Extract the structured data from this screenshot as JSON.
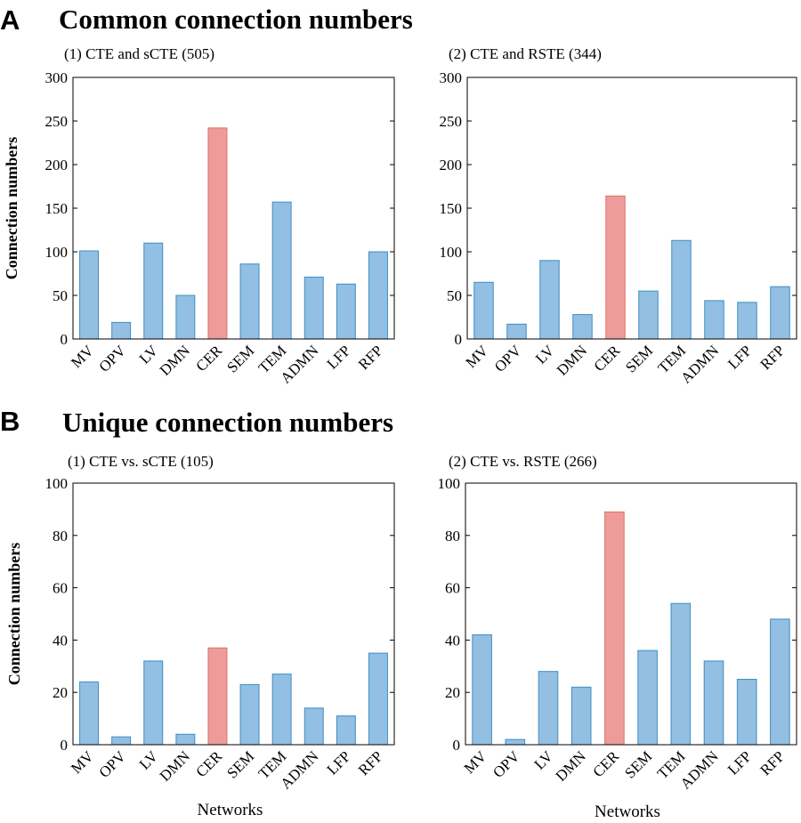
{
  "sections": [
    {
      "letter": "A",
      "heading": "Common connection numbers"
    },
    {
      "letter": "B",
      "heading": "Unique connection numbers"
    }
  ],
  "chart_data": [
    {
      "type": "bar",
      "title": "(1) CTE and sCTE (505)",
      "ylabel": "Connection numbers",
      "xlabel": "",
      "ylim": [
        0,
        300
      ],
      "yticks": [
        0,
        50,
        100,
        150,
        200,
        250,
        300
      ],
      "categories": [
        "MV",
        "OPV",
        "LV",
        "DMN",
        "CER",
        "SEM",
        "TEM",
        "ADMN",
        "LFP",
        "RFP"
      ],
      "values": [
        101,
        19,
        110,
        50,
        242,
        86,
        157,
        71,
        63,
        100
      ],
      "highlight": "CER",
      "colors": {
        "bar": "#93bfe3",
        "bar_edge": "#3c8fc2",
        "highlight": "#ee9b9b",
        "highlight_edge": "#e0705f"
      }
    },
    {
      "type": "bar",
      "title": "(2) CTE and RSTE (344)",
      "ylabel": "",
      "xlabel": "",
      "ylim": [
        0,
        300
      ],
      "yticks": [
        0,
        50,
        100,
        150,
        200,
        250,
        300
      ],
      "categories": [
        "MV",
        "OPV",
        "LV",
        "DMN",
        "CER",
        "SEM",
        "TEM",
        "ADMN",
        "LFP",
        "RFP"
      ],
      "values": [
        65,
        17,
        90,
        28,
        164,
        55,
        113,
        44,
        42,
        60
      ],
      "highlight": "CER",
      "colors": {
        "bar": "#93bfe3",
        "bar_edge": "#3c8fc2",
        "highlight": "#ee9b9b",
        "highlight_edge": "#e0705f"
      }
    },
    {
      "type": "bar",
      "title": "(1) CTE vs. sCTE (105)",
      "ylabel": "Connection numbers",
      "xlabel": "Networks",
      "ylim": [
        0,
        100
      ],
      "yticks": [
        0,
        20,
        40,
        60,
        80,
        100
      ],
      "categories": [
        "MV",
        "OPV",
        "LV",
        "DMN",
        "CER",
        "SEM",
        "TEM",
        "ADMN",
        "LFP",
        "RFP"
      ],
      "values": [
        24,
        3,
        32,
        4,
        37,
        23,
        27,
        14,
        11,
        35
      ],
      "highlight": "CER",
      "colors": {
        "bar": "#93bfe3",
        "bar_edge": "#3c8fc2",
        "highlight": "#ee9b9b",
        "highlight_edge": "#e0705f"
      }
    },
    {
      "type": "bar",
      "title": "(2) CTE vs. RSTE (266)",
      "ylabel": "",
      "xlabel": "Networks",
      "ylim": [
        0,
        100
      ],
      "yticks": [
        0,
        20,
        40,
        60,
        80,
        100
      ],
      "categories": [
        "MV",
        "OPV",
        "LV",
        "DMN",
        "CER",
        "SEM",
        "TEM",
        "ADMN",
        "LFP",
        "RFP"
      ],
      "values": [
        42,
        2,
        28,
        22,
        89,
        36,
        54,
        32,
        25,
        48
      ],
      "highlight": "CER",
      "colors": {
        "bar": "#93bfe3",
        "bar_edge": "#3c8fc2",
        "highlight": "#ee9b9b",
        "highlight_edge": "#e0705f"
      }
    }
  ]
}
